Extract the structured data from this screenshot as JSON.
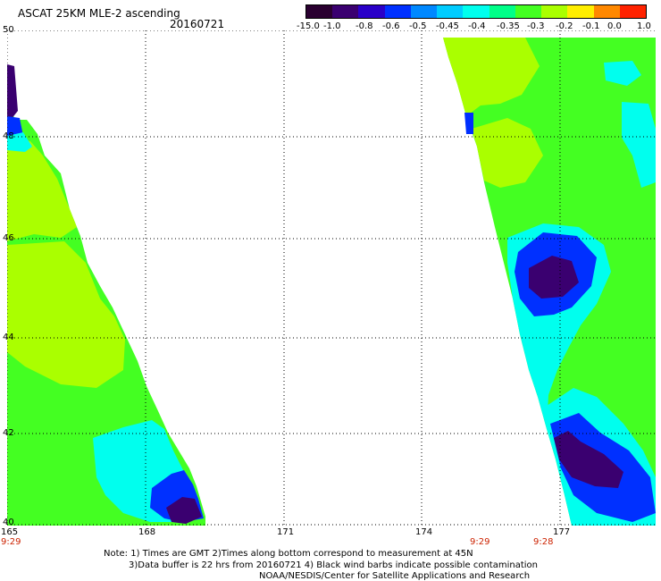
{
  "header": {
    "title": "ASCAT 25KM MLE-2 ascending",
    "date": "20160721"
  },
  "colorbar": {
    "labels": [
      "-15.0",
      "-1.0",
      "-0.8",
      "-0.6",
      "-0.5",
      "-0.45",
      "-0.4",
      "-0.35",
      "-0.3",
      "-0.2",
      "-0.1",
      "0.0",
      "1.0"
    ],
    "colors": [
      "#2a0030",
      "#3a0070",
      "#2a00c8",
      "#0030ff",
      "#0088ff",
      "#00ccff",
      "#00ffee",
      "#00ff88",
      "#44ff22",
      "#aaff00",
      "#ffee00",
      "#ff8800",
      "#ff2200"
    ]
  },
  "map": {
    "lat_labels": [
      "50",
      "48",
      "46",
      "44",
      "42",
      "40"
    ],
    "lon_labels": [
      "165",
      "168",
      "171",
      "174",
      "177"
    ],
    "colors": {
      "green": "#44ff22",
      "lime": "#aaff00",
      "cyan": "#00ffee",
      "blue": "#0030ff",
      "navy": "#3a0070",
      "purple": "#2a0030"
    }
  },
  "times": [
    "9:29",
    "9:29",
    "9:28"
  ],
  "notes": [
    "Note: 1) Times are GMT 2)Times along bottom correspond to measurement at 45N",
    "3)Data buffer is 22 hrs from 20160721 4) Black wind barbs indicate possible contamination",
    "NOAA/NESDIS/Center for Satellite Applications and Research"
  ]
}
